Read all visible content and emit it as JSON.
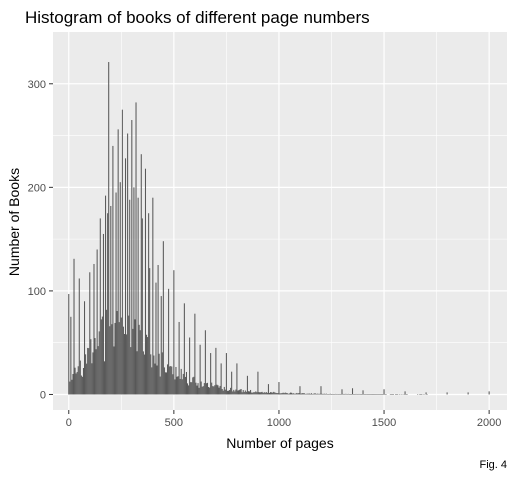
{
  "chart_data": {
    "type": "bar",
    "title": "Histogram of books of different page numbers",
    "xlabel": "Number of pages",
    "ylabel": "Number of Books",
    "caption": "Fig. 4",
    "xlim": [
      -75,
      2085
    ],
    "ylim": [
      -15,
      350
    ],
    "x_ticks": [
      0,
      500,
      1000,
      1500,
      2000
    ],
    "y_ticks": [
      0,
      100,
      200,
      300
    ],
    "grid": true,
    "legend": "none",
    "colors": {
      "bar": "#595959",
      "panel": "#ebebeb",
      "grid": "#ffffff"
    },
    "bin_width": 5,
    "peaks": [
      {
        "x": 0,
        "y": 97
      },
      {
        "x": 10,
        "y": 75
      },
      {
        "x": 25,
        "y": 131
      },
      {
        "x": 50,
        "y": 112
      },
      {
        "x": 75,
        "y": 90
      },
      {
        "x": 100,
        "y": 118
      },
      {
        "x": 120,
        "y": 126
      },
      {
        "x": 135,
        "y": 140
      },
      {
        "x": 150,
        "y": 170
      },
      {
        "x": 165,
        "y": 155
      },
      {
        "x": 175,
        "y": 192
      },
      {
        "x": 185,
        "y": 175
      },
      {
        "x": 190,
        "y": 321
      },
      {
        "x": 200,
        "y": 182
      },
      {
        "x": 210,
        "y": 240
      },
      {
        "x": 225,
        "y": 195
      },
      {
        "x": 235,
        "y": 256
      },
      {
        "x": 245,
        "y": 205
      },
      {
        "x": 255,
        "y": 275
      },
      {
        "x": 270,
        "y": 228
      },
      {
        "x": 280,
        "y": 252
      },
      {
        "x": 290,
        "y": 188
      },
      {
        "x": 300,
        "y": 265
      },
      {
        "x": 310,
        "y": 200
      },
      {
        "x": 320,
        "y": 282
      },
      {
        "x": 330,
        "y": 190
      },
      {
        "x": 345,
        "y": 232
      },
      {
        "x": 352,
        "y": 170
      },
      {
        "x": 365,
        "y": 218
      },
      {
        "x": 378,
        "y": 175
      },
      {
        "x": 387,
        "y": 122
      },
      {
        "x": 400,
        "y": 190
      },
      {
        "x": 415,
        "y": 108
      },
      {
        "x": 425,
        "y": 125
      },
      {
        "x": 440,
        "y": 95
      },
      {
        "x": 450,
        "y": 148
      },
      {
        "x": 475,
        "y": 102
      },
      {
        "x": 500,
        "y": 120
      },
      {
        "x": 525,
        "y": 70
      },
      {
        "x": 550,
        "y": 88
      },
      {
        "x": 575,
        "y": 55
      },
      {
        "x": 600,
        "y": 78
      },
      {
        "x": 625,
        "y": 48
      },
      {
        "x": 650,
        "y": 62
      },
      {
        "x": 675,
        "y": 40
      },
      {
        "x": 700,
        "y": 45
      },
      {
        "x": 725,
        "y": 30
      },
      {
        "x": 750,
        "y": 40
      },
      {
        "x": 775,
        "y": 22
      },
      {
        "x": 800,
        "y": 30
      },
      {
        "x": 850,
        "y": 18
      },
      {
        "x": 900,
        "y": 22
      },
      {
        "x": 950,
        "y": 10
      },
      {
        "x": 1000,
        "y": 12
      },
      {
        "x": 1100,
        "y": 8
      },
      {
        "x": 1200,
        "y": 8
      },
      {
        "x": 1300,
        "y": 5
      },
      {
        "x": 1350,
        "y": 6
      },
      {
        "x": 1400,
        "y": 4
      },
      {
        "x": 1500,
        "y": 5
      },
      {
        "x": 1600,
        "y": 3
      },
      {
        "x": 1700,
        "y": 2
      },
      {
        "x": 1800,
        "y": 2
      },
      {
        "x": 1900,
        "y": 2
      },
      {
        "x": 2000,
        "y": 3
      }
    ],
    "baseline_profile": [
      {
        "x": 0,
        "y": 12
      },
      {
        "x": 40,
        "y": 20
      },
      {
        "x": 100,
        "y": 38
      },
      {
        "x": 160,
        "y": 55
      },
      {
        "x": 220,
        "y": 62
      },
      {
        "x": 280,
        "y": 58
      },
      {
        "x": 350,
        "y": 45
      },
      {
        "x": 420,
        "y": 32
      },
      {
        "x": 500,
        "y": 20
      },
      {
        "x": 600,
        "y": 12
      },
      {
        "x": 700,
        "y": 7
      },
      {
        "x": 800,
        "y": 4
      },
      {
        "x": 900,
        "y": 2.5
      },
      {
        "x": 1000,
        "y": 1.5
      },
      {
        "x": 1200,
        "y": 0.6
      },
      {
        "x": 1500,
        "y": 0.2
      },
      {
        "x": 2000,
        "y": 0
      }
    ]
  }
}
